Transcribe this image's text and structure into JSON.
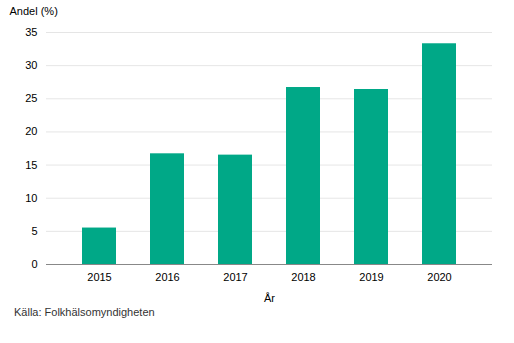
{
  "chart_data": {
    "type": "bar",
    "categories": [
      "2015",
      "2016",
      "2017",
      "2018",
      "2019",
      "2020"
    ],
    "values": [
      5.5,
      16.7,
      16.5,
      26.7,
      26.4,
      33.3
    ],
    "color": "#00a887",
    "xlabel": "År",
    "ylabel": "Andel (%)",
    "ylim": [
      0,
      35
    ],
    "yticks": [
      0,
      5,
      10,
      15,
      20,
      25,
      30,
      35
    ],
    "grid": true,
    "annotations": [
      "Källa: Folkhälsomyndigheten"
    ]
  }
}
